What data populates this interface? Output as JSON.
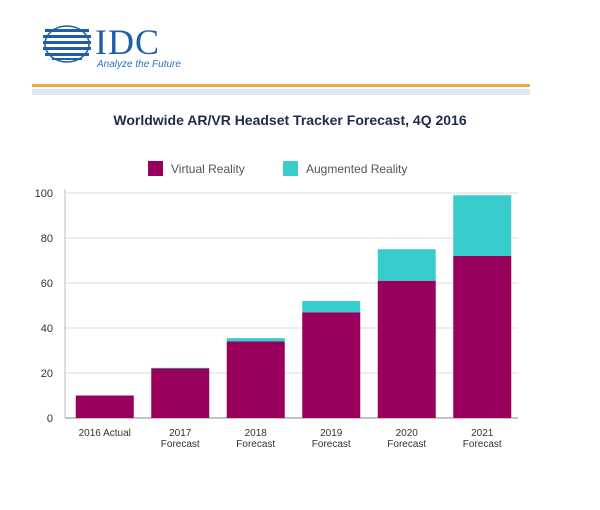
{
  "logo": {
    "word": "IDC",
    "tagline": "Analyze the Future"
  },
  "colors": {
    "virtual_reality": "#99005e",
    "augmented_reality": "#38cccc",
    "grid": "#dddddd",
    "title": "#1e2b4a",
    "logo_blue": "#1f5ea8",
    "accent_orange": "#f2a541"
  },
  "chart_data": {
    "type": "bar",
    "stacked": true,
    "title": "Worldwide AR/VR Headset Tracker Forecast, 4Q 2016",
    "xlabel": "",
    "ylabel": "",
    "ylim": [
      0,
      100
    ],
    "yticks": [
      "0",
      "20",
      "40",
      "60",
      "80",
      "100"
    ],
    "grid": true,
    "legend_position": "top",
    "categories": [
      [
        "2016 Actual"
      ],
      [
        "2017",
        "Forecast"
      ],
      [
        "2018",
        "Forecast"
      ],
      [
        "2019",
        "Forecast"
      ],
      [
        "2020",
        "Forecast"
      ],
      [
        "2021",
        "Forecast"
      ]
    ],
    "series": [
      {
        "name": "Virtual Reality",
        "values": [
          10,
          22,
          34,
          47,
          61,
          72
        ]
      },
      {
        "name": "Augmented Reality",
        "values": [
          0,
          0.3,
          1.5,
          5,
          14,
          27
        ]
      }
    ]
  }
}
